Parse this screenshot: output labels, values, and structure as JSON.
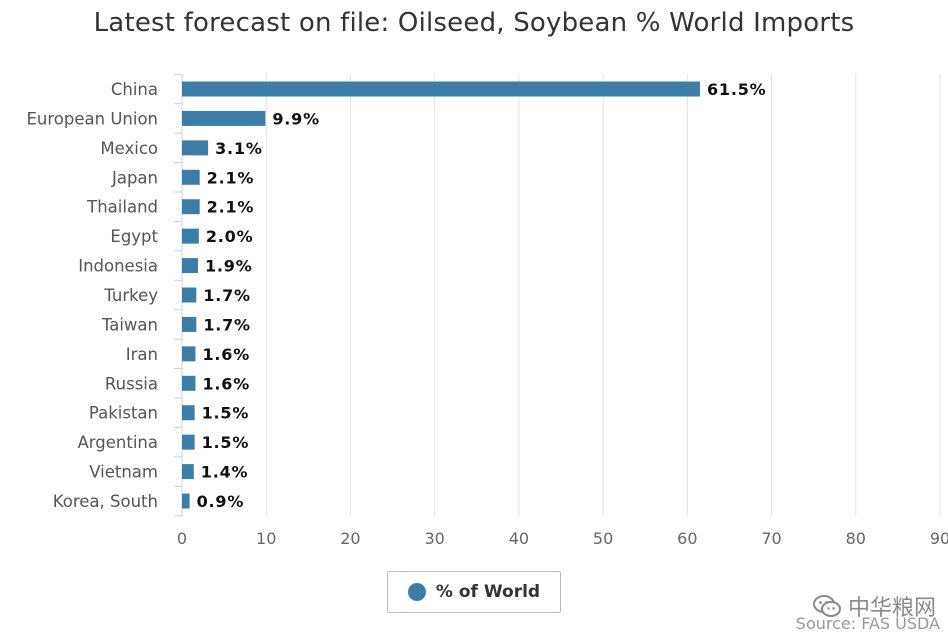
{
  "chart_data": {
    "type": "bar",
    "orientation": "horizontal",
    "title": "Latest forecast on file: Oilseed, Soybean % World Imports",
    "categories": [
      "China",
      "European Union",
      "Mexico",
      "Japan",
      "Thailand",
      "Egypt",
      "Indonesia",
      "Turkey",
      "Taiwan",
      "Iran",
      "Russia",
      "Pakistan",
      "Argentina",
      "Vietnam",
      "Korea, South"
    ],
    "series": [
      {
        "name": "% of World",
        "values": [
          61.5,
          9.9,
          3.1,
          2.1,
          2.1,
          2.0,
          1.9,
          1.7,
          1.7,
          1.6,
          1.6,
          1.5,
          1.5,
          1.4,
          0.9
        ],
        "labels": [
          "61.5%",
          "9.9%",
          "3.1%",
          "2.1%",
          "2.1%",
          "2.0%",
          "1.9%",
          "1.7%",
          "1.7%",
          "1.6%",
          "1.6%",
          "1.5%",
          "1.5%",
          "1.4%",
          "0.9%"
        ],
        "color": "#3d7ea8"
      }
    ],
    "xlim": [
      0,
      90
    ],
    "xticks": [
      0,
      10,
      20,
      30,
      40,
      50,
      60,
      70,
      80,
      90
    ],
    "xlabel": "",
    "ylabel": "",
    "grid": true,
    "legend_position": "bottom-center"
  },
  "watermark": {
    "icon": "wechat-icon",
    "text": "中华粮网"
  },
  "source": "Source: FAS USDA",
  "colors": {
    "bar": "#3d7ea8",
    "grid": "#e3e3e3",
    "axis": "#c8d2e2"
  }
}
